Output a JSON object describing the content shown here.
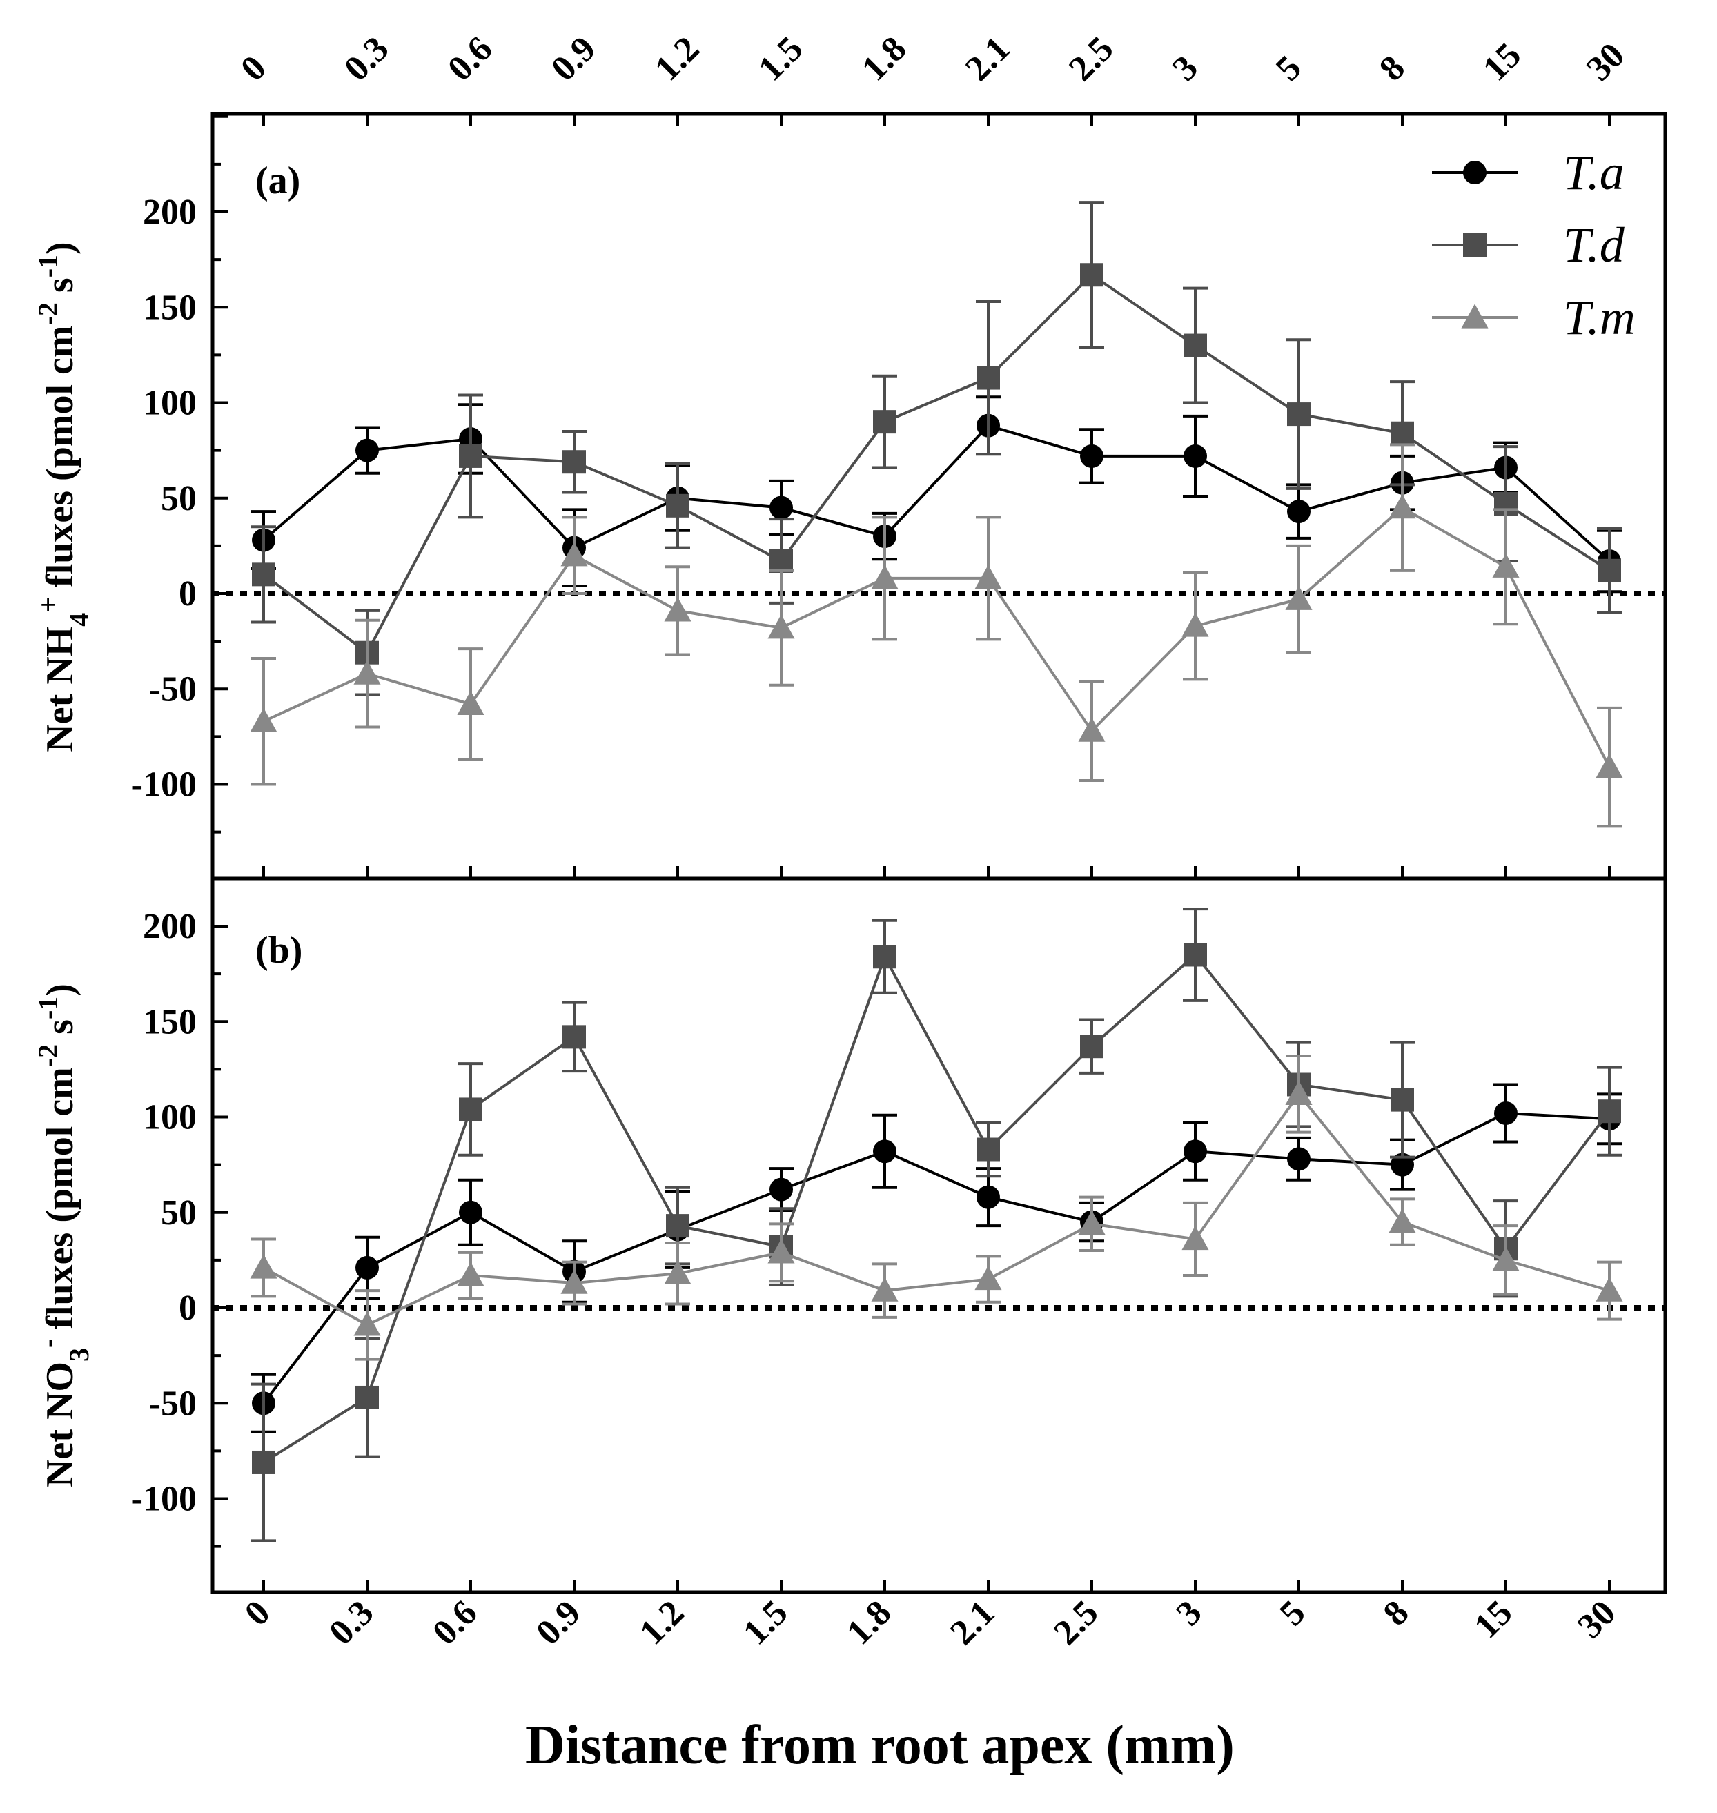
{
  "chart_data": {
    "type": "line",
    "xlabel": "Distance from root apex (mm)",
    "x": [
      "0",
      "0.3",
      "0.6",
      "0.9",
      "1.2",
      "1.5",
      "1.8",
      "2.1",
      "2.5",
      "3",
      "5",
      "8",
      "15",
      "30"
    ],
    "colors": {
      "T.a": "#000000",
      "T.d": "#4d4d4d",
      "T.m": "#888888"
    },
    "legend": {
      "position": "top-right",
      "entries": [
        "T.a",
        "T.d",
        "T.m"
      ]
    },
    "reference_line": {
      "y": 0,
      "style": "dotted"
    },
    "panels": [
      {
        "tag": "(a)",
        "ylabel": {
          "pre": "Net NH",
          "sub": "4",
          "sup": "+",
          "post": " fluxes (pmol cm",
          "sup2": "-2",
          "mid": " s",
          "sup3": "-1",
          "end": ")"
        },
        "ylim": [
          -150,
          250
        ],
        "yticks": [
          -100,
          -50,
          0,
          50,
          100,
          150,
          200
        ],
        "series": [
          {
            "name": "T.a",
            "marker": "circle",
            "values": [
              28,
              75,
              81,
              24,
              50,
              45,
              30,
              88,
              72,
              72,
              43,
              58,
              66,
              17
            ],
            "errors": [
              15,
              12,
              18,
              20,
              17,
              14,
              12,
              15,
              14,
              21,
              14,
              14,
              13,
              16
            ]
          },
          {
            "name": "T.d",
            "marker": "square",
            "values": [
              10,
              -31,
              72,
              69,
              46,
              17,
              90,
              113,
              167,
              130,
              94,
              84,
              47,
              12
            ],
            "errors": [
              25,
              22,
              32,
              16,
              22,
              22,
              24,
              40,
              38,
              30,
              39,
              27,
              30,
              22
            ]
          },
          {
            "name": "T.m",
            "marker": "triangle",
            "values": [
              -67,
              -42,
              -58,
              20,
              -9,
              -18,
              8,
              8,
              -72,
              -17,
              -3,
              45,
              14,
              -91
            ],
            "errors": [
              33,
              28,
              29,
              20,
              23,
              30,
              32,
              32,
              26,
              28,
              28,
              33,
              30,
              31
            ]
          }
        ]
      },
      {
        "tag": "(b)",
        "ylabel": {
          "pre": "Net NO",
          "sub": "3",
          "sup": "-",
          "post": " fluxes (pmol cm",
          "sup2": "-2",
          "mid": " s",
          "sup3": "-1",
          "end": ")"
        },
        "ylim": [
          -150,
          225
        ],
        "yticks": [
          -100,
          -50,
          0,
          50,
          100,
          150,
          200
        ],
        "series": [
          {
            "name": "T.a",
            "marker": "circle",
            "values": [
              -50,
              21,
              50,
              19,
              41,
              62,
              82,
              58,
              45,
              82,
              78,
              75,
              102,
              99
            ],
            "errors": [
              15,
              16,
              17,
              16,
              20,
              11,
              19,
              15,
              10,
              15,
              11,
              13,
              15,
              13
            ]
          },
          {
            "name": "T.d",
            "marker": "square",
            "values": [
              -81,
              -47,
              104,
              142,
              43,
              32,
              184,
              83,
              137,
              185,
              117,
              109,
              31,
              103
            ],
            "errors": [
              41,
              31,
              24,
              18,
              20,
              20,
              19,
              14,
              14,
              24,
              22,
              30,
              25,
              23
            ]
          },
          {
            "name": "T.m",
            "marker": "triangle",
            "values": [
              21,
              -9,
              17,
              13,
              18,
              29,
              9,
              15,
              44,
              36,
              112,
              45,
              25,
              9
            ],
            "errors": [
              15,
              18,
              12,
              11,
              16,
              15,
              14,
              12,
              14,
              19,
              20,
              12,
              18,
              15
            ]
          }
        ]
      }
    ]
  }
}
